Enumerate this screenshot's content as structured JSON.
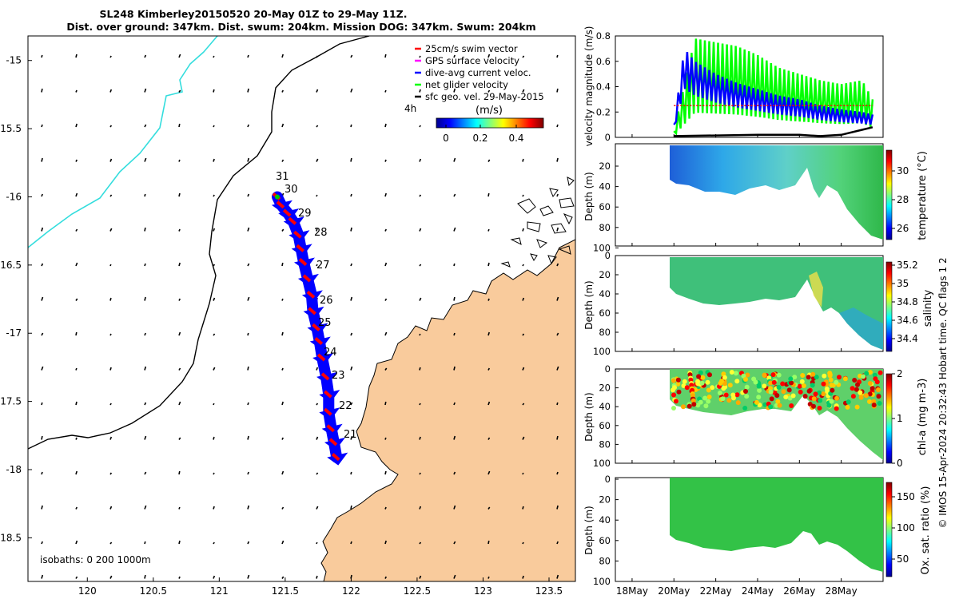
{
  "title_line1": "SL248 Kimberley20150520 20-May 01Z to 29-May 11Z.",
  "title_line2": "Dist. over ground: 347km. Dist. swum: 204km. Mission DOG: 347km. Swum: 204km",
  "credit": "© IMOS 15-Apr-2024 20:32:43 Hobart time. QC flags 1  2",
  "isobaths_label": "isobaths: 0   200  1000m",
  "colors": {
    "land": "#f9cb9c",
    "track": "#0000ff",
    "swim": "#ff0000",
    "net": "#00ff00",
    "isobath_200": "#000000",
    "isobath_1000": "#33dddd"
  },
  "map": {
    "x_ticks": [
      "120",
      "120.5",
      "121",
      "121.5",
      "122",
      "122.5",
      "123",
      "123.5"
    ],
    "y_ticks": [
      "-15",
      "-15.5",
      "-16",
      "-16.5",
      "-17",
      "-17.5",
      "-18",
      "-18.5"
    ],
    "legend": [
      {
        "label": "25cm/s swim vector",
        "color": "#ff0000"
      },
      {
        "label": "GPS surface velocity",
        "color": "#ff00ff"
      },
      {
        "label": "dive-avg current veloc.",
        "color": "#0000ff"
      },
      {
        "label": "net glider velocity",
        "color": "#00ff00"
      },
      {
        "label": "sfc geo. vel. 29-May-2015",
        "color": "#000000"
      }
    ],
    "legend_extra": "4h",
    "colorbar_title": "(m/s)",
    "colorbar_ticks": [
      "0",
      "0.2",
      "0.4"
    ],
    "day_labels": [
      "31",
      "30",
      "29",
      "28",
      "27",
      "26",
      "25",
      "24",
      "23",
      "22",
      "21"
    ]
  },
  "panels": {
    "velocity": {
      "ylabel": "velocity magnitude (m/s)",
      "yticks": [
        "0",
        "0.2",
        "0.4",
        "0.6",
        "0.8"
      ]
    },
    "temperature": {
      "ylabel": "Depth (m)",
      "cblabel": "temperature (°C)",
      "cbticks": [
        "30",
        "28",
        "26"
      ],
      "yticks": [
        "20",
        "40",
        "60",
        "80",
        "100"
      ]
    },
    "salinity": {
      "ylabel": "Depth (m)",
      "cblabel": "salinity",
      "cbticks": [
        "35.2",
        "35",
        "34.8",
        "34.6",
        "34.4"
      ],
      "yticks": [
        "0",
        "20",
        "40",
        "60",
        "80",
        "100"
      ]
    },
    "chla": {
      "ylabel": "Depth (m)",
      "cblabel": "chl-a (mg m-3)",
      "cbticks": [
        "2",
        "1",
        "0"
      ],
      "yticks": [
        "0",
        "20",
        "40",
        "60",
        "80",
        "100"
      ]
    },
    "oxygen": {
      "ylabel": "Depth (m)",
      "cblabel": "Ox. sat. ratio (%)",
      "cbticks": [
        "150",
        "100",
        "50"
      ],
      "yticks": [
        "0",
        "20",
        "40",
        "60",
        "80",
        "100"
      ]
    },
    "time_ticks": [
      "18May",
      "20May",
      "22May",
      "24May",
      "26May",
      "28May"
    ]
  },
  "chart_data": [
    {
      "type": "scatter",
      "title": "SL248 Kimberley20150520 20-May 01Z to 29-May 11Z.",
      "subtitle": "Dist. over ground: 347km. Dist. swum: 204km. Mission DOG: 347km. Swum: 204km",
      "xlim": [
        119.55,
        123.7
      ],
      "ylim": [
        -18.82,
        -14.82
      ],
      "series": [
        {
          "name": "dive-avg current veloc.",
          "x": [
            121.89,
            121.87,
            121.85,
            121.83,
            121.83,
            121.81,
            121.78,
            121.76,
            121.74,
            121.71,
            121.7,
            121.67,
            121.64,
            121.62,
            121.6,
            121.56,
            121.52,
            121.47,
            121.44
          ],
          "y": [
            -17.91,
            -17.8,
            -17.7,
            -17.58,
            -17.45,
            -17.32,
            -17.18,
            -17.06,
            -16.96,
            -16.84,
            -16.72,
            -16.6,
            -16.48,
            -16.38,
            -16.28,
            -16.18,
            -16.12,
            -16.06,
            -16.0
          ]
        }
      ]
    },
    {
      "type": "line",
      "xlabel": "",
      "ylabel": "velocity magnitude (m/s)",
      "ylim": [
        0,
        0.8
      ],
      "x_ticks": [
        "18May",
        "20May",
        "22May",
        "24May",
        "26May",
        "28May"
      ],
      "series": [
        {
          "name": "net glider velocity",
          "x": [
            20.0,
            21.0,
            22.0,
            23.0,
            24.0,
            25.0,
            26.0,
            27.0,
            28.0,
            29.0,
            29.5
          ],
          "y": [
            0.05,
            0.78,
            0.75,
            0.72,
            0.65,
            0.55,
            0.5,
            0.45,
            0.42,
            0.45,
            0.3
          ]
        },
        {
          "name": "dive-avg current veloc.",
          "x": [
            20.0,
            20.5,
            21.0,
            22.0,
            23.0,
            24.0,
            25.0,
            26.0,
            27.0,
            28.0,
            29.0,
            29.5
          ],
          "y": [
            0.1,
            0.7,
            0.6,
            0.5,
            0.43,
            0.38,
            0.33,
            0.3,
            0.25,
            0.22,
            0.2,
            0.18
          ]
        },
        {
          "name": "25cm/s swim vector",
          "x": [
            20.0,
            29.5
          ],
          "y": [
            0.25,
            0.25
          ]
        },
        {
          "name": "sfc geo. vel.",
          "x": [
            20.0,
            24.0,
            26.0,
            27.0,
            28.0,
            29.0,
            29.5
          ],
          "y": [
            0.01,
            0.02,
            0.02,
            0.01,
            0.02,
            0.06,
            0.08
          ]
        }
      ]
    }
  ]
}
